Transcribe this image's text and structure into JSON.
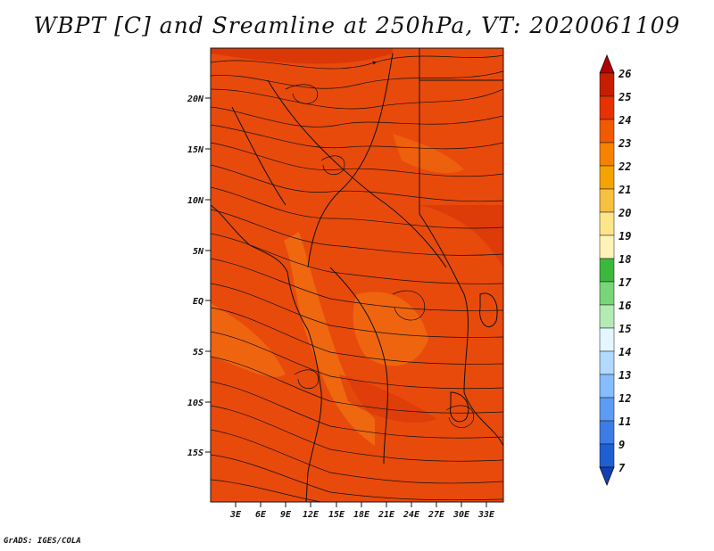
{
  "title": "WBPT [C] and Sreamline at 250hPa, VT: 2020061109",
  "credit": "GrADS: IGES/COLA",
  "map": {
    "lat_range": [
      -20,
      25
    ],
    "lon_range": [
      0,
      35
    ],
    "lat_ticks": [
      "20N",
      "15N",
      "10N",
      "5N",
      "EQ",
      "5S",
      "10S",
      "15S"
    ],
    "lon_ticks": [
      "3E",
      "6E",
      "9E",
      "12E",
      "15E",
      "18E",
      "21E",
      "24E",
      "27E",
      "30E",
      "33E"
    ],
    "fill_dominant_class": "23-24",
    "fill_secondary_class": "22-23"
  },
  "colorbar": {
    "levels": [
      "26",
      "25",
      "24",
      "23",
      "22",
      "21",
      "20",
      "19",
      "18",
      "17",
      "16",
      "15",
      "14",
      "13",
      "12",
      "11",
      "9",
      "7"
    ],
    "colors": [
      "#b40000",
      "#c81e00",
      "#e63200",
      "#f25a00",
      "#f78200",
      "#f5a300",
      "#f8c040",
      "#fde68a",
      "#fff4b8",
      "#3cb93c",
      "#78d678",
      "#b4ebb4",
      "#e4f6ff",
      "#b2d9ff",
      "#86bdff",
      "#5c9cf5",
      "#3c7ce6",
      "#1e5fd2",
      "#1240b4"
    ]
  }
}
